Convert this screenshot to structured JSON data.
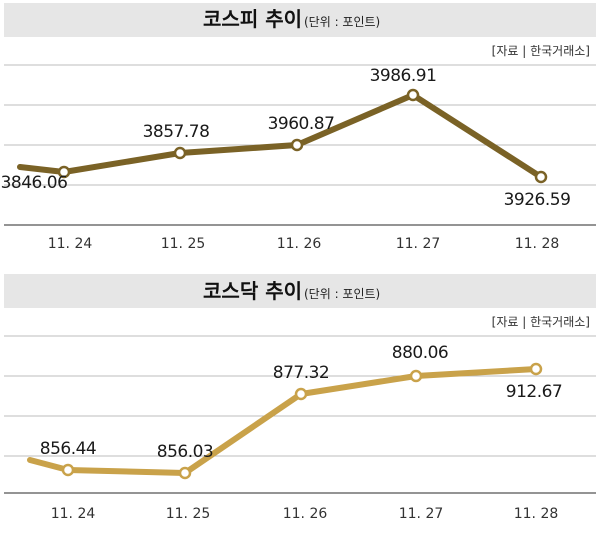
{
  "chart_data": [
    {
      "type": "line",
      "title": "코스피 추이",
      "unit": "(단위 : 포인트)",
      "source": "[자료 | 한국거래소]",
      "categories": [
        "11. 24",
        "11. 25",
        "11. 26",
        "11. 27",
        "11. 28"
      ],
      "values": [
        3846.06,
        3857.78,
        3960.87,
        3986.91,
        3926.59
      ],
      "labels": [
        "3846.06",
        "3857.78",
        "3960.87",
        "3986.91",
        "3926.59"
      ],
      "line_color": "#7a6226",
      "grid": true
    },
    {
      "type": "line",
      "title": "코스닥 추이",
      "unit": "(단위 : 포인트)",
      "source": "[자료 | 한국거래소]",
      "categories": [
        "11. 24",
        "11. 25",
        "11. 26",
        "11. 27",
        "11. 28"
      ],
      "values": [
        856.44,
        856.03,
        877.32,
        880.06,
        912.67
      ],
      "labels": [
        "856.44",
        "856.03",
        "877.32",
        "880.06",
        "912.67"
      ],
      "line_color": "#c9a24a",
      "grid": true
    }
  ]
}
